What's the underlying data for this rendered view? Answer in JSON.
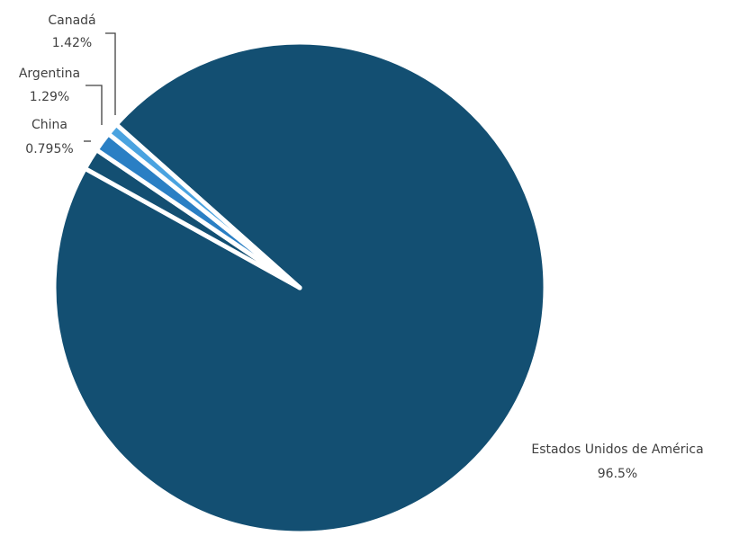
{
  "chart_data": {
    "type": "pie",
    "title": "",
    "categories": [
      "Estados Unidos de América",
      "Canadá",
      "Argentina",
      "China"
    ],
    "values": [
      96.5,
      1.42,
      1.29,
      0.795
    ],
    "labels": [
      "96.5%",
      "1.42%",
      "1.29%",
      "0.795%"
    ],
    "colors": [
      "#134f72",
      "#134f72",
      "#2a7fc4",
      "#4aa3e0"
    ],
    "legend": "none",
    "label_placement": "outside-with-leaders"
  }
}
